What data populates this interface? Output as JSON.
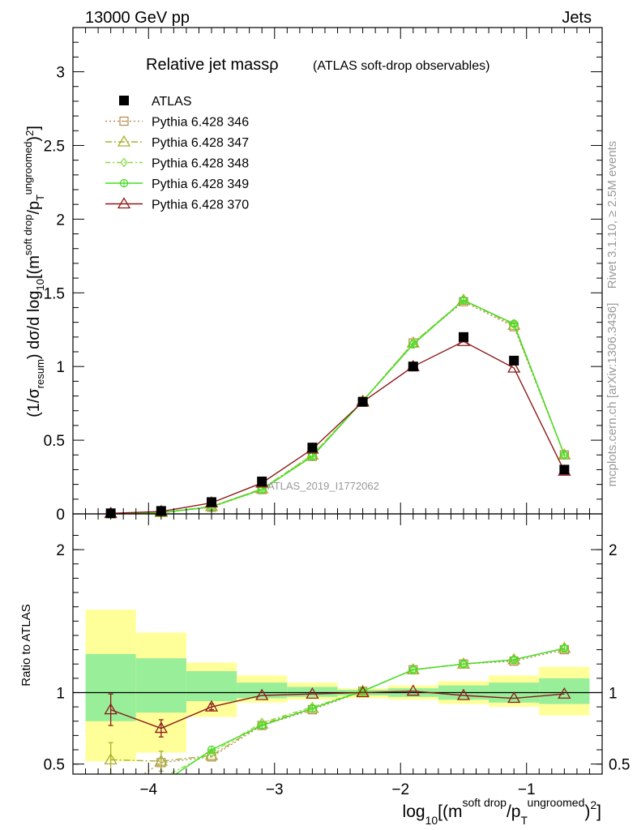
{
  "header": {
    "left": "13000 GeV pp",
    "right": "Jets"
  },
  "side_labels": {
    "rivet": "Rivet 3.1.10, ≥ 2.5M events",
    "mcplots": "mcplots.cern.ch [arXiv:1306.3436]"
  },
  "watermark": "ATLAS_2019_I1772062",
  "chart_data": [
    {
      "type": "line",
      "title": "Relative jet massρ",
      "subtitle": "(ATLAS soft-drop observables)",
      "ylabel": "(1/σ_resum) dσ/d log10[(m^soft drop/p_T^ungroomed)^2]",
      "xlim": [
        -4.6,
        -0.4
      ],
      "ylim": [
        0,
        3.3
      ],
      "yticks": [
        0,
        0.5,
        1,
        1.5,
        2,
        2.5,
        3
      ],
      "ytick_labels": [
        "0",
        "0.5",
        "1",
        "1.5",
        "2",
        "2.5",
        "3"
      ],
      "legend": "top-left",
      "series": [
        {
          "name": "ATLAS",
          "color": "#000000",
          "marker": "square-filled",
          "x": [
            -4.3,
            -3.9,
            -3.5,
            -3.1,
            -2.7,
            -2.3,
            -1.9,
            -1.5,
            -1.1,
            -0.7
          ],
          "y": [
            0.004,
            0.02,
            0.08,
            0.22,
            0.45,
            0.76,
            1.0,
            1.2,
            1.04,
            0.3
          ]
        },
        {
          "name": "Pythia 6.428 346",
          "color": "#b8915a",
          "marker": "square-open",
          "dash": "2,3",
          "x": [
            -4.3,
            -3.9,
            -3.5,
            -3.1,
            -2.7,
            -2.3,
            -1.9,
            -1.5,
            -1.1,
            -0.7
          ],
          "y": [
            0.002,
            0.01,
            0.045,
            0.165,
            0.39,
            0.765,
            1.16,
            1.44,
            1.27,
            0.4
          ]
        },
        {
          "name": "Pythia 6.428 347",
          "color": "#a8b030",
          "marker": "triangle-open",
          "dash": "8,3,2,3",
          "x": [
            -4.3,
            -3.9,
            -3.5,
            -3.1,
            -2.7,
            -2.3,
            -1.9,
            -1.5,
            -1.1,
            -0.7
          ],
          "y": [
            0.002,
            0.01,
            0.05,
            0.17,
            0.4,
            0.765,
            1.16,
            1.45,
            1.28,
            0.4
          ]
        },
        {
          "name": "Pythia 6.428 348",
          "color": "#88dd44",
          "marker": "diamond-open",
          "dash": "6,3,2,3",
          "x": [
            -4.3,
            -3.9,
            -3.5,
            -3.1,
            -2.7,
            -2.3,
            -1.9,
            -1.5,
            -1.1,
            -0.7
          ],
          "y": [
            0.002,
            0.008,
            0.05,
            0.17,
            0.4,
            0.765,
            1.16,
            1.45,
            1.29,
            0.4
          ]
        },
        {
          "name": "Pythia 6.428 349",
          "color": "#44dd22",
          "marker": "circle-cross",
          "dash": "",
          "x": [
            -4.3,
            -3.9,
            -3.5,
            -3.1,
            -2.7,
            -2.3,
            -1.9,
            -1.5,
            -1.1,
            -0.7
          ],
          "y": [
            0.001,
            0.007,
            0.048,
            0.165,
            0.39,
            0.765,
            1.15,
            1.45,
            1.29,
            0.4
          ]
        },
        {
          "name": "Pythia 6.428 370",
          "color": "#8b1a1a",
          "marker": "triangle-open",
          "dash": "",
          "x": [
            -4.3,
            -3.9,
            -3.5,
            -3.1,
            -2.7,
            -2.3,
            -1.9,
            -1.5,
            -1.1,
            -0.7
          ],
          "y": [
            0.004,
            0.016,
            0.075,
            0.21,
            0.44,
            0.76,
            1.0,
            1.17,
            0.99,
            0.29
          ]
        }
      ]
    },
    {
      "type": "line",
      "ylabel": "Ratio to ATLAS",
      "xlabel": "log10[(m^soft drop/p_T^ungroomed)^2]",
      "xlim": [
        -4.6,
        -0.4
      ],
      "ylim": [
        0.43,
        2.25
      ],
      "xticks": [
        -4,
        -3,
        -2,
        -1
      ],
      "xtick_labels": [
        "−4",
        "−3",
        "−2",
        "−1"
      ],
      "yticks": [
        0.5,
        1,
        2
      ],
      "ytick_labels": [
        "0.5",
        "1",
        "2"
      ],
      "uncertainty_bands": {
        "edges": [
          -4.5,
          -4.1,
          -3.7,
          -3.3,
          -2.9,
          -2.5,
          -2.1,
          -1.7,
          -1.3,
          -0.9,
          -0.5
        ],
        "inner": [
          [
            0.8,
            1.27
          ],
          [
            0.86,
            1.24
          ],
          [
            0.94,
            1.15
          ],
          [
            0.96,
            1.07
          ],
          [
            0.97,
            1.04
          ],
          [
            0.98,
            1.02
          ],
          [
            0.97,
            1.03
          ],
          [
            0.95,
            1.05
          ],
          [
            0.93,
            1.07
          ],
          [
            0.92,
            1.1
          ]
        ],
        "outer": [
          [
            0.52,
            1.58
          ],
          [
            0.58,
            1.42
          ],
          [
            0.83,
            1.21
          ],
          [
            0.93,
            1.12
          ],
          [
            0.95,
            1.07
          ],
          [
            0.96,
            1.03
          ],
          [
            0.95,
            1.05
          ],
          [
            0.92,
            1.08
          ],
          [
            0.9,
            1.12
          ],
          [
            0.84,
            1.18
          ]
        ],
        "inner_color": "#99ee99",
        "outer_color": "#ffff99"
      },
      "series": [
        {
          "name": "Pythia 6.428 346",
          "color": "#b8915a",
          "marker": "square-open",
          "dash": "2,3",
          "x": [
            -4.3,
            -3.9,
            -3.5,
            -3.1,
            -2.7,
            -2.3,
            -1.9,
            -1.5,
            -1.1,
            -0.7
          ],
          "y": [
            0.28,
            0.51,
            0.55,
            0.77,
            0.88,
            1.01,
            1.16,
            1.2,
            1.22,
            1.3
          ]
        },
        {
          "name": "Pythia 6.428 347",
          "color": "#a8b030",
          "marker": "triangle-open",
          "dash": "8,3,2,3",
          "x": [
            -4.3,
            -3.9,
            -3.5,
            -3.1,
            -2.7,
            -2.3,
            -1.9,
            -1.5,
            -1.1,
            -0.7
          ],
          "y": [
            0.53,
            0.52,
            0.56,
            0.78,
            0.89,
            1.01,
            1.16,
            1.2,
            1.23,
            1.31
          ],
          "err": [
            0.12,
            0.07,
            0,
            0,
            0,
            0,
            0,
            0,
            0,
            0
          ]
        },
        {
          "name": "Pythia 6.428 348",
          "color": "#88dd44",
          "marker": "diamond-open",
          "dash": "6,3,2,3",
          "x": [
            -3.9,
            -3.5,
            -3.1,
            -2.7,
            -2.3,
            -1.9,
            -1.5,
            -1.1,
            -0.7
          ],
          "y": [
            0.4,
            0.58,
            0.79,
            0.9,
            1.01,
            1.16,
            1.2,
            1.23,
            1.31
          ]
        },
        {
          "name": "Pythia 6.428 349",
          "color": "#44dd22",
          "marker": "circle-cross",
          "dash": "",
          "x": [
            -3.9,
            -3.5,
            -3.1,
            -2.7,
            -2.3,
            -1.9,
            -1.5,
            -1.1,
            -0.7
          ],
          "y": [
            0.36,
            0.6,
            0.77,
            0.89,
            1.01,
            1.16,
            1.2,
            1.23,
            1.31
          ]
        },
        {
          "name": "Pythia 6.428 370",
          "color": "#8b1a1a",
          "marker": "triangle-open",
          "dash": "",
          "x": [
            -4.3,
            -3.9,
            -3.5,
            -3.1,
            -2.7,
            -2.3,
            -1.9,
            -1.5,
            -1.1,
            -0.7
          ],
          "y": [
            0.88,
            0.75,
            0.9,
            0.98,
            0.99,
            1.0,
            1.01,
            0.98,
            0.96,
            0.99
          ],
          "err": [
            0.11,
            0.06,
            0.02,
            0,
            0,
            0,
            0,
            0,
            0,
            0
          ]
        }
      ]
    }
  ]
}
